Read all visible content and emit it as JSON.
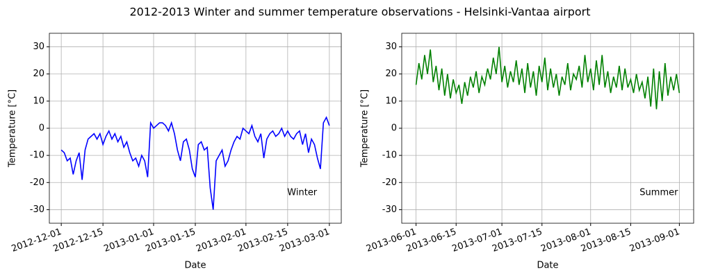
{
  "title": "2012-2013 Winter and summer temperature observations - Helsinki-Vantaa airport",
  "chart_data": [
    {
      "type": "line",
      "xlabel": "Date",
      "ylabel": "Temperature [°C]",
      "annotation": "Winter",
      "grid": true,
      "xlim": [
        "2012-11-27",
        "2013-03-05"
      ],
      "ylim": [
        -35,
        35
      ],
      "xticks": [
        "2012-12-01",
        "2012-12-15",
        "2013-01-01",
        "2013-01-15",
        "2013-02-01",
        "2013-02-15",
        "2013-03-01"
      ],
      "yticks": [
        -30,
        -20,
        -10,
        0,
        10,
        20,
        30
      ],
      "x": [
        "2012-12-01",
        "2012-12-02",
        "2012-12-03",
        "2012-12-04",
        "2012-12-05",
        "2012-12-06",
        "2012-12-07",
        "2012-12-08",
        "2012-12-09",
        "2012-12-10",
        "2012-12-11",
        "2012-12-12",
        "2012-12-13",
        "2012-12-14",
        "2012-12-15",
        "2012-12-16",
        "2012-12-17",
        "2012-12-18",
        "2012-12-19",
        "2012-12-20",
        "2012-12-21",
        "2012-12-22",
        "2012-12-23",
        "2012-12-24",
        "2012-12-25",
        "2012-12-26",
        "2012-12-27",
        "2012-12-28",
        "2012-12-29",
        "2012-12-30",
        "2012-12-31",
        "2013-01-01",
        "2013-01-02",
        "2013-01-03",
        "2013-01-04",
        "2013-01-05",
        "2013-01-06",
        "2013-01-07",
        "2013-01-08",
        "2013-01-09",
        "2013-01-10",
        "2013-01-11",
        "2013-01-12",
        "2013-01-13",
        "2013-01-14",
        "2013-01-15",
        "2013-01-16",
        "2013-01-17",
        "2013-01-18",
        "2013-01-19",
        "2013-01-20",
        "2013-01-21",
        "2013-01-22",
        "2013-01-23",
        "2013-01-24",
        "2013-01-25",
        "2013-01-26",
        "2013-01-27",
        "2013-01-28",
        "2013-01-29",
        "2013-01-30",
        "2013-01-31",
        "2013-02-01",
        "2013-02-02",
        "2013-02-03",
        "2013-02-04",
        "2013-02-05",
        "2013-02-06",
        "2013-02-07",
        "2013-02-08",
        "2013-02-09",
        "2013-02-10",
        "2013-02-11",
        "2013-02-12",
        "2013-02-13",
        "2013-02-14",
        "2013-02-15",
        "2013-02-16",
        "2013-02-17",
        "2013-02-18",
        "2013-02-19",
        "2013-02-20",
        "2013-02-21",
        "2013-02-22",
        "2013-02-23",
        "2013-02-24",
        "2013-02-25",
        "2013-02-26",
        "2013-02-27",
        "2013-02-28",
        "2013-03-01"
      ],
      "series": [
        {
          "name": "Winter",
          "color": "#0000ff",
          "values": [
            -8,
            -9,
            -12,
            -11,
            -17,
            -12,
            -9,
            -19,
            -8,
            -4,
            -3,
            -2,
            -4,
            -2,
            -6,
            -3,
            -1,
            -4,
            -2,
            -5,
            -3,
            -7,
            -5,
            -9,
            -12,
            -11,
            -14,
            -10,
            -12,
            -18,
            2,
            0,
            1,
            2,
            2,
            1,
            -1,
            2,
            -2,
            -8,
            -12,
            -5,
            -4,
            -8,
            -15,
            -18,
            -6,
            -5,
            -8,
            -7,
            -22,
            -30,
            -12,
            -10,
            -8,
            -14,
            -12,
            -8,
            -5,
            -3,
            -4,
            0,
            -1,
            -2,
            1,
            -3,
            -5,
            -2,
            -11,
            -4,
            -2,
            -1,
            -3,
            -2,
            0,
            -3,
            -1,
            -3,
            -4,
            -2,
            -1,
            -6,
            -2,
            -9,
            -4,
            -6,
            -11,
            -15,
            2,
            4,
            1
          ]
        }
      ]
    },
    {
      "type": "line",
      "xlabel": "Date",
      "ylabel": "Temperature [°C]",
      "annotation": "Summer",
      "grid": true,
      "xlim": [
        "2013-05-27",
        "2013-09-06"
      ],
      "ylim": [
        -35,
        35
      ],
      "xticks": [
        "2013-06-01",
        "2013-06-15",
        "2013-07-01",
        "2013-07-15",
        "2013-08-01",
        "2013-08-15",
        "2013-09-01"
      ],
      "yticks": [
        -30,
        -20,
        -10,
        0,
        10,
        20,
        30
      ],
      "x": [
        "2013-06-01",
        "2013-06-02",
        "2013-06-03",
        "2013-06-04",
        "2013-06-05",
        "2013-06-06",
        "2013-06-07",
        "2013-06-08",
        "2013-06-09",
        "2013-06-10",
        "2013-06-11",
        "2013-06-12",
        "2013-06-13",
        "2013-06-14",
        "2013-06-15",
        "2013-06-16",
        "2013-06-17",
        "2013-06-18",
        "2013-06-19",
        "2013-06-20",
        "2013-06-21",
        "2013-06-22",
        "2013-06-23",
        "2013-06-24",
        "2013-06-25",
        "2013-06-26",
        "2013-06-27",
        "2013-06-28",
        "2013-06-29",
        "2013-06-30",
        "2013-07-01",
        "2013-07-02",
        "2013-07-03",
        "2013-07-04",
        "2013-07-05",
        "2013-07-06",
        "2013-07-07",
        "2013-07-08",
        "2013-07-09",
        "2013-07-10",
        "2013-07-11",
        "2013-07-12",
        "2013-07-13",
        "2013-07-14",
        "2013-07-15",
        "2013-07-16",
        "2013-07-17",
        "2013-07-18",
        "2013-07-19",
        "2013-07-20",
        "2013-07-21",
        "2013-07-22",
        "2013-07-23",
        "2013-07-24",
        "2013-07-25",
        "2013-07-26",
        "2013-07-27",
        "2013-07-28",
        "2013-07-29",
        "2013-07-30",
        "2013-07-31",
        "2013-08-01",
        "2013-08-02",
        "2013-08-03",
        "2013-08-04",
        "2013-08-05",
        "2013-08-06",
        "2013-08-07",
        "2013-08-08",
        "2013-08-09",
        "2013-08-10",
        "2013-08-11",
        "2013-08-12",
        "2013-08-13",
        "2013-08-14",
        "2013-08-15",
        "2013-08-16",
        "2013-08-17",
        "2013-08-18",
        "2013-08-19",
        "2013-08-20",
        "2013-08-21",
        "2013-08-22",
        "2013-08-23",
        "2013-08-24",
        "2013-08-25",
        "2013-08-26",
        "2013-08-27",
        "2013-08-28",
        "2013-08-29",
        "2013-08-30",
        "2013-08-31",
        "2013-09-01"
      ],
      "series": [
        {
          "name": "Summer",
          "color": "#008000",
          "values": [
            16,
            24,
            18,
            27,
            20,
            29,
            17,
            23,
            14,
            22,
            12,
            20,
            11,
            18,
            13,
            16,
            9,
            17,
            12,
            19,
            15,
            21,
            13,
            19,
            16,
            22,
            18,
            26,
            20,
            30,
            17,
            23,
            15,
            21,
            17,
            25,
            16,
            22,
            13,
            24,
            15,
            21,
            12,
            23,
            17,
            26,
            14,
            22,
            15,
            20,
            12,
            19,
            16,
            24,
            14,
            20,
            18,
            23,
            15,
            27,
            17,
            22,
            14,
            25,
            16,
            27,
            15,
            21,
            13,
            19,
            15,
            23,
            14,
            22,
            15,
            18,
            13,
            20,
            14,
            17,
            11,
            19,
            8,
            22,
            7,
            21,
            10,
            24,
            12,
            19,
            14,
            20,
            13
          ]
        }
      ]
    }
  ]
}
